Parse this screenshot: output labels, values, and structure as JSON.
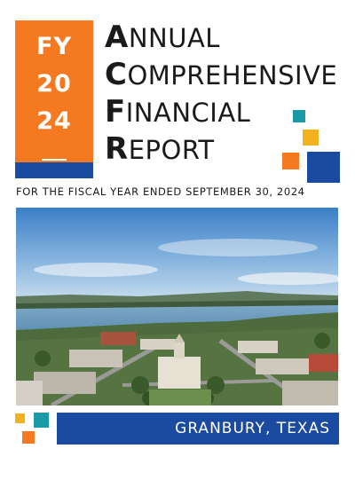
{
  "fiscal_block": {
    "line1": "FY",
    "line2": "20",
    "line3": "24"
  },
  "title": {
    "w1_initial": "A",
    "w1_rest": "NNUAL",
    "w2_initial": "C",
    "w2_rest": "OMPREHENSIVE",
    "w3_initial": "F",
    "w3_rest": "INANCIAL",
    "w4_initial": "R",
    "w4_rest": "EPORT"
  },
  "subtitle": "FOR THE FISCAL YEAR ENDED SEPTEMBER 30, 2024",
  "location": "GRANBURY, TEXAS",
  "colors": {
    "orange": "#f47920",
    "blue": "#1b4ba0",
    "teal": "#1a9aa6",
    "yellow": "#f2b21e"
  }
}
